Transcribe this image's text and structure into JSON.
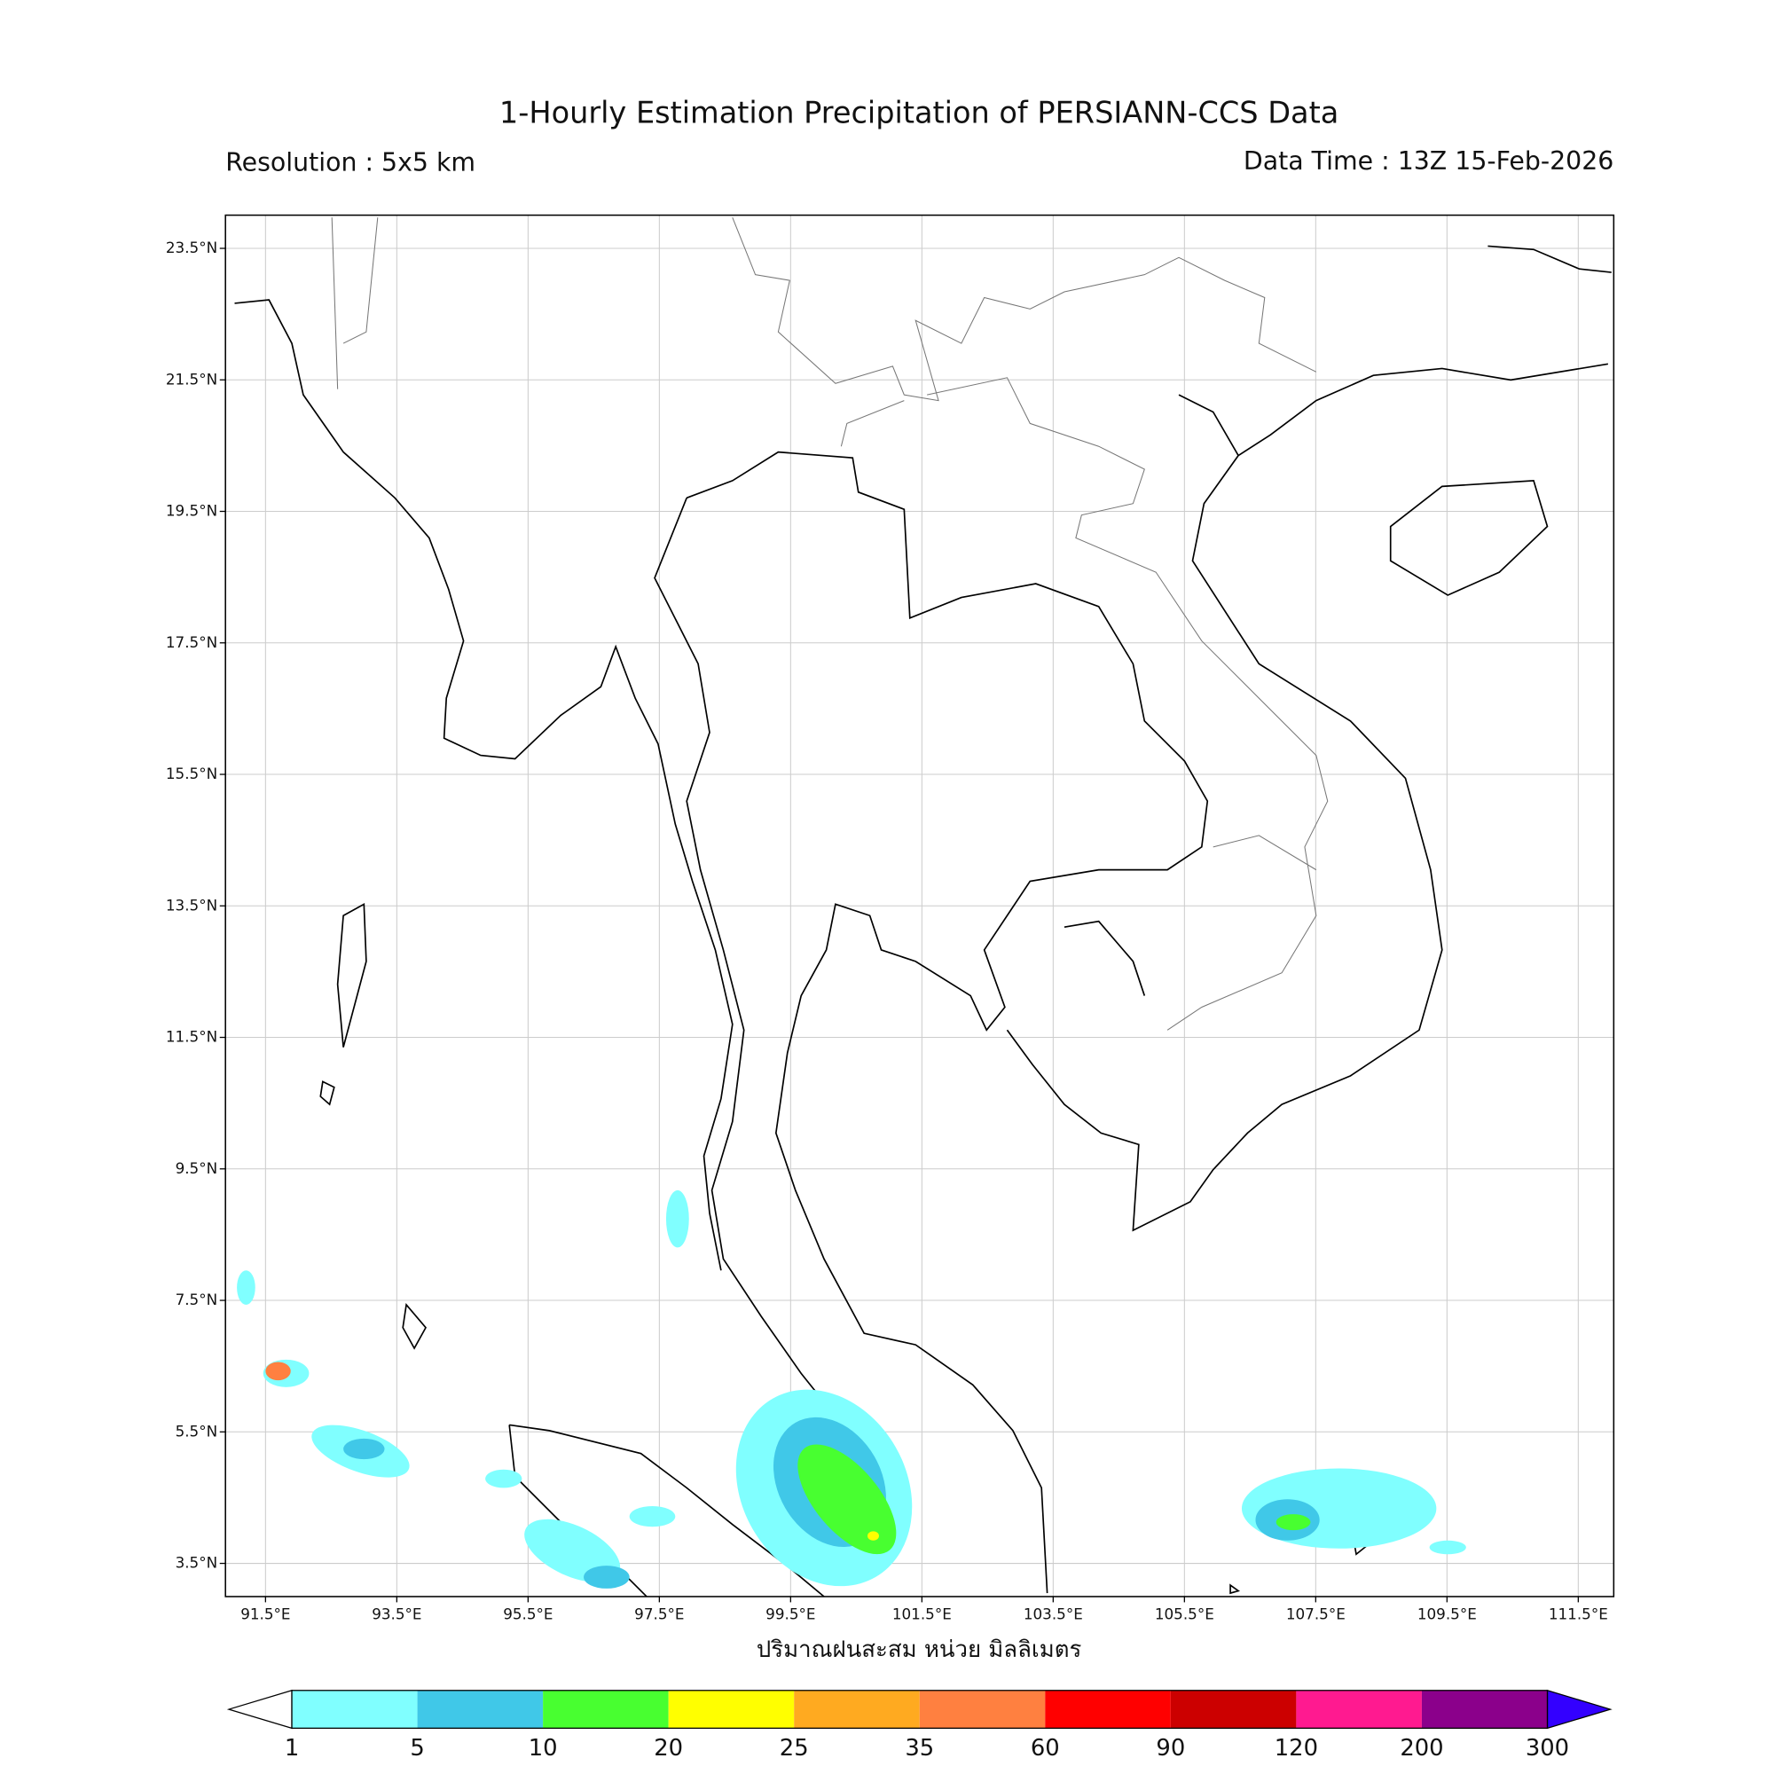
{
  "header": {
    "title": "1-Hourly Estimation Precipitation of PERSIANN-CCS Data",
    "resolution": "Resolution : 5x5 km",
    "data_time": "Data Time : 13Z 15-Feb-2026"
  },
  "map": {
    "lat_ticks": [
      {
        "value": 23.5,
        "label": "23.5°N"
      },
      {
        "value": 21.5,
        "label": "21.5°N"
      },
      {
        "value": 19.5,
        "label": "19.5°N"
      },
      {
        "value": 17.5,
        "label": "17.5°N"
      },
      {
        "value": 15.5,
        "label": "15.5°N"
      },
      {
        "value": 13.5,
        "label": "13.5°N"
      },
      {
        "value": 11.5,
        "label": "11.5°N"
      },
      {
        "value": 9.5,
        "label": "9.5°N"
      },
      {
        "value": 7.5,
        "label": "7.5°N"
      },
      {
        "value": 5.5,
        "label": "5.5°N"
      },
      {
        "value": 3.5,
        "label": "3.5°N"
      }
    ],
    "lon_ticks": [
      {
        "value": 91.5,
        "label": "91.5°E"
      },
      {
        "value": 93.5,
        "label": "93.5°E"
      },
      {
        "value": 95.5,
        "label": "95.5°E"
      },
      {
        "value": 97.5,
        "label": "97.5°E"
      },
      {
        "value": 99.5,
        "label": "99.5°E"
      },
      {
        "value": 101.5,
        "label": "101.5°E"
      },
      {
        "value": 103.5,
        "label": "103.5°E"
      },
      {
        "value": 105.5,
        "label": "105.5°E"
      },
      {
        "value": 107.5,
        "label": "107.5°E"
      },
      {
        "value": 109.5,
        "label": "109.5°E"
      },
      {
        "value": 111.5,
        "label": "111.5°E"
      }
    ],
    "grid": true
  },
  "colorbar": {
    "label": "ปริมาณฝนสะสม หน่วย มิลลิเมตร",
    "levels": [
      1,
      5,
      10,
      20,
      25,
      35,
      60,
      90,
      120,
      200,
      300
    ],
    "colors": [
      "#80ffff",
      "#40c8e8",
      "#48ff30",
      "#ffff00",
      "#ffaa20",
      "#ff8040",
      "#ff0000",
      "#cc0000",
      "#ff1a90",
      "#8b008b"
    ],
    "under_color": "#ffffff",
    "over_color": "#3300ff"
  }
}
